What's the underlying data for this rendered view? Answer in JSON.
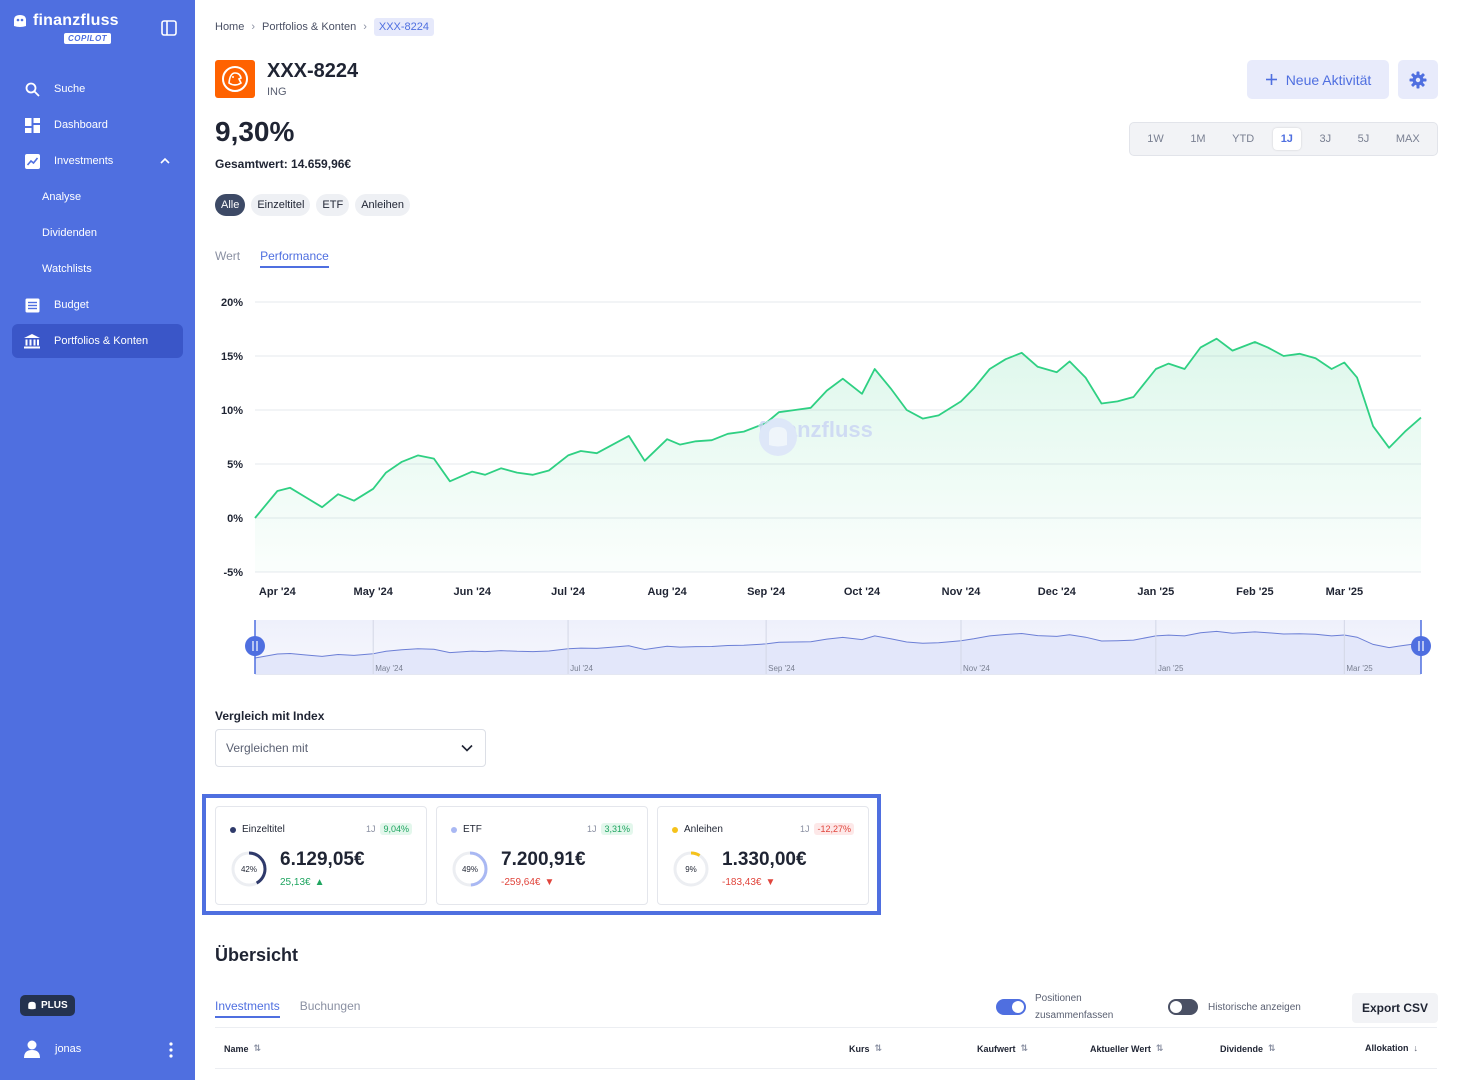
{
  "sidebar": {
    "brand": "finanzfluss",
    "brand_tag": "COPILOT",
    "items": [
      {
        "label": "Suche",
        "icon": "search-icon"
      },
      {
        "label": "Dashboard",
        "icon": "dashboard-icon"
      },
      {
        "label": "Investments",
        "icon": "chart-icon"
      },
      {
        "label": "Analyse"
      },
      {
        "label": "Dividenden"
      },
      {
        "label": "Watchlists"
      },
      {
        "label": "Budget",
        "icon": "budget-icon"
      },
      {
        "label": "Portfolios & Konten",
        "icon": "bank-icon"
      }
    ],
    "plus_label": "PLUS",
    "user": "jonas"
  },
  "breadcrumb": {
    "home": "Home",
    "portfolios": "Portfolios & Konten",
    "current": "XXX-8224"
  },
  "account": {
    "name": "XXX-8224",
    "bank": "ING",
    "performance": "9,30%",
    "total": "Gesamtwert: 14.659,96€"
  },
  "actions": {
    "new_activity": "Neue Aktivität"
  },
  "ranges": [
    "1W",
    "1M",
    "YTD",
    "1J",
    "3J",
    "5J",
    "MAX"
  ],
  "range_active": "1J",
  "filters": [
    "Alle",
    "Einzeltitel",
    "ETF",
    "Anleihen"
  ],
  "view_tabs": [
    "Wert",
    "Performance"
  ],
  "watermark": "finanzfluss",
  "compare": {
    "label": "Vergleich mit Index",
    "placeholder": "Vergleichen mit"
  },
  "cards": [
    {
      "name": "Einzeltitel",
      "period": "1J",
      "perf": "9,04%",
      "perf_sign": "pos",
      "share": "42%",
      "share_frac": 0.42,
      "value": "6.129,05€",
      "change": "25,13€",
      "change_sign": "pos",
      "color": "#2f3a6b"
    },
    {
      "name": "ETF",
      "period": "1J",
      "perf": "3,31%",
      "perf_sign": "pos",
      "share": "49%",
      "share_frac": 0.49,
      "value": "7.200,91€",
      "change": "-259,64€",
      "change_sign": "neg",
      "color": "#a9b8f3"
    },
    {
      "name": "Anleihen",
      "period": "1J",
      "perf": "-12,27%",
      "perf_sign": "neg",
      "share": "9%",
      "share_frac": 0.09,
      "value": "1.330,00€",
      "change": "-183,43€",
      "change_sign": "neg",
      "color": "#f5c21b"
    }
  ],
  "overview": {
    "title": "Übersicht",
    "tabs": [
      "Investments",
      "Buchungen"
    ],
    "toggle_merge_label_1": "Positionen",
    "toggle_merge_label_2": "zusammenfassen",
    "toggle_merge_on": true,
    "toggle_hist_label": "Historische anzeigen",
    "toggle_hist_on": false,
    "export": "Export CSV",
    "columns": [
      "Name",
      "Kurs",
      "Kaufwert",
      "Aktueller Wert",
      "Dividende",
      "Allokation"
    ]
  },
  "chart_data": {
    "type": "area",
    "title": "",
    "xlabel": "",
    "ylabel": "",
    "y_tick_labels": [
      "20%",
      "15%",
      "10%",
      "5%",
      "0%",
      "-5%"
    ],
    "ylim": [
      -5,
      20
    ],
    "x_tick_labels": [
      "Apr '24",
      "May '24",
      "Jun '24",
      "Jul '24",
      "Aug '24",
      "Sep '24",
      "Oct '24",
      "Nov '24",
      "Dec '24",
      "Jan '25",
      "Feb '25",
      "Mar '25"
    ],
    "navigator_labels": [
      "May '24",
      "Jul '24",
      "Sep '24",
      "Nov '24",
      "Jan '25",
      "Mar '25"
    ],
    "grid": true,
    "line_color": "#2fd083",
    "series": [
      {
        "x": [
          "2024-03-25",
          "2024-04-01",
          "2024-04-05",
          "2024-04-10",
          "2024-04-15",
          "2024-04-20",
          "2024-04-25",
          "2024-05-01",
          "2024-05-05",
          "2024-05-10",
          "2024-05-15",
          "2024-05-20",
          "2024-05-25",
          "2024-06-01",
          "2024-06-05",
          "2024-06-10",
          "2024-06-15",
          "2024-06-20",
          "2024-06-25",
          "2024-07-01",
          "2024-07-05",
          "2024-07-10",
          "2024-07-15",
          "2024-07-20",
          "2024-07-25",
          "2024-08-01",
          "2024-08-05",
          "2024-08-10",
          "2024-08-15",
          "2024-08-20",
          "2024-08-25",
          "2024-09-01",
          "2024-09-05",
          "2024-09-10",
          "2024-09-15",
          "2024-09-20",
          "2024-09-25",
          "2024-10-01",
          "2024-10-05",
          "2024-10-10",
          "2024-10-15",
          "2024-10-20",
          "2024-10-25",
          "2024-11-01",
          "2024-11-05",
          "2024-11-10",
          "2024-11-15",
          "2024-11-20",
          "2024-11-25",
          "2024-12-01",
          "2024-12-05",
          "2024-12-10",
          "2024-12-15",
          "2024-12-20",
          "2024-12-25",
          "2025-01-01",
          "2025-01-05",
          "2025-01-10",
          "2025-01-15",
          "2025-01-20",
          "2025-01-25",
          "2025-02-01",
          "2025-02-05",
          "2025-02-10",
          "2025-02-15",
          "2025-02-20",
          "2025-02-25",
          "2025-03-01",
          "2025-03-05",
          "2025-03-10",
          "2025-03-15",
          "2025-03-20",
          "2025-03-25"
        ],
        "y": [
          0.0,
          2.5,
          2.8,
          1.9,
          1.0,
          2.2,
          1.6,
          2.7,
          4.2,
          5.2,
          5.8,
          5.5,
          3.4,
          4.3,
          4.0,
          4.6,
          4.2,
          4.0,
          4.4,
          5.8,
          6.2,
          6.0,
          6.8,
          7.6,
          5.3,
          7.3,
          6.8,
          7.1,
          7.2,
          7.8,
          8.0,
          8.8,
          9.8,
          10.0,
          10.2,
          11.8,
          12.9,
          11.5,
          13.8,
          12.0,
          10.0,
          9.2,
          9.5,
          10.8,
          12.0,
          13.8,
          14.7,
          15.3,
          14.0,
          13.5,
          14.5,
          13.0,
          10.6,
          10.8,
          11.2,
          13.8,
          14.3,
          13.8,
          15.8,
          16.6,
          15.5,
          16.3,
          15.8,
          15.0,
          15.2,
          14.8,
          13.8,
          14.4,
          13.0,
          8.5,
          6.5,
          8.0,
          9.3
        ]
      }
    ]
  }
}
